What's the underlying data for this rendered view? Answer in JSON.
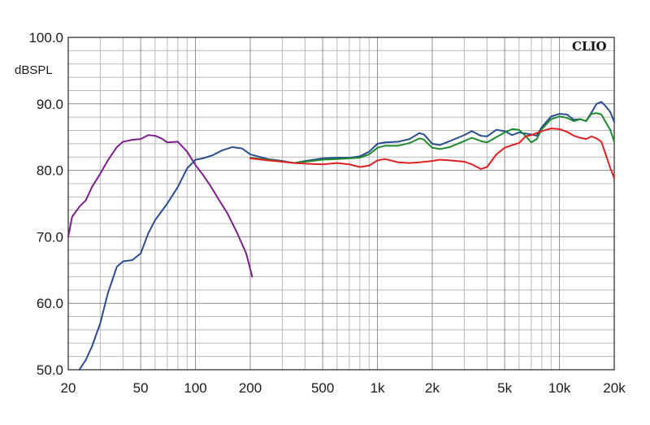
{
  "chart_data": {
    "type": "line",
    "brand": "CLIO",
    "ylabel": "dBSPL",
    "xlabel": "",
    "title": "",
    "x_scale": "log",
    "xlim": [
      20,
      20000
    ],
    "ylim": [
      50,
      100
    ],
    "grid": true,
    "y_ticks": [
      {
        "value": 50,
        "label": "50.0"
      },
      {
        "value": 60,
        "label": "60.0"
      },
      {
        "value": 70,
        "label": "70.0"
      },
      {
        "value": 80,
        "label": "80.0"
      },
      {
        "value": 90,
        "label": "90.0"
      },
      {
        "value": 100,
        "label": "100.0"
      }
    ],
    "x_ticks": [
      {
        "value": 20,
        "label": "20"
      },
      {
        "value": 50,
        "label": "50"
      },
      {
        "value": 100,
        "label": "100"
      },
      {
        "value": 200,
        "label": "200"
      },
      {
        "value": 500,
        "label": "500"
      },
      {
        "value": 1000,
        "label": "1k"
      },
      {
        "value": 2000,
        "label": "2k"
      },
      {
        "value": 5000,
        "label": "5k"
      },
      {
        "value": 10000,
        "label": "10k"
      },
      {
        "value": 20000,
        "label": "20k"
      }
    ],
    "series": [
      {
        "color": "#7b1f8a",
        "points": [
          [
            20,
            70
          ],
          [
            21,
            73
          ],
          [
            23,
            74.5
          ],
          [
            25,
            75.5
          ],
          [
            27,
            77.5
          ],
          [
            30,
            79.5
          ],
          [
            33,
            81.5
          ],
          [
            37,
            83.5
          ],
          [
            40,
            84.3
          ],
          [
            45,
            84.6
          ],
          [
            50,
            84.7
          ],
          [
            55,
            85.3
          ],
          [
            60,
            85.2
          ],
          [
            65,
            84.8
          ],
          [
            70,
            84.2
          ],
          [
            80,
            84.3
          ],
          [
            90,
            82.8
          ],
          [
            100,
            80.8
          ],
          [
            110,
            79.3
          ],
          [
            120,
            77.8
          ],
          [
            135,
            75.5
          ],
          [
            150,
            73.5
          ],
          [
            170,
            70.5
          ],
          [
            190,
            67.5
          ],
          [
            205,
            64
          ]
        ]
      },
      {
        "color": "#2a4d8f",
        "points": [
          [
            23,
            50
          ],
          [
            25,
            51.5
          ],
          [
            27,
            53.5
          ],
          [
            30,
            57
          ],
          [
            33,
            61.5
          ],
          [
            37,
            65.5
          ],
          [
            40,
            66.3
          ],
          [
            45,
            66.5
          ],
          [
            50,
            67.5
          ],
          [
            55,
            70.5
          ],
          [
            60,
            72.5
          ],
          [
            70,
            75
          ],
          [
            80,
            77.5
          ],
          [
            90,
            80.3
          ],
          [
            100,
            81.6
          ],
          [
            110,
            81.8
          ],
          [
            125,
            82.3
          ],
          [
            140,
            83
          ],
          [
            160,
            83.5
          ],
          [
            180,
            83.3
          ],
          [
            200,
            82.4
          ],
          [
            250,
            81.7
          ],
          [
            300,
            81.4
          ],
          [
            350,
            81.1
          ],
          [
            400,
            81.4
          ],
          [
            500,
            81.8
          ],
          [
            600,
            81.9
          ],
          [
            700,
            81.9
          ],
          [
            800,
            82.1
          ],
          [
            900,
            82.8
          ],
          [
            1000,
            84
          ],
          [
            1100,
            84.2
          ],
          [
            1300,
            84.3
          ],
          [
            1500,
            84.7
          ],
          [
            1700,
            85.6
          ],
          [
            1800,
            85.4
          ],
          [
            2000,
            84
          ],
          [
            2200,
            83.8
          ],
          [
            2500,
            84.4
          ],
          [
            3000,
            85.3
          ],
          [
            3300,
            85.9
          ],
          [
            3700,
            85.2
          ],
          [
            4000,
            85.1
          ],
          [
            4500,
            86.1
          ],
          [
            5000,
            85.9
          ],
          [
            5500,
            85.3
          ],
          [
            6000,
            85.7
          ],
          [
            7000,
            85.4
          ],
          [
            7500,
            85.2
          ],
          [
            8000,
            86.5
          ],
          [
            9000,
            88.1
          ],
          [
            10000,
            88.5
          ],
          [
            11000,
            88.4
          ],
          [
            12000,
            87.6
          ],
          [
            13000,
            87.7
          ],
          [
            14000,
            87.4
          ],
          [
            15000,
            88.7
          ],
          [
            16000,
            90
          ],
          [
            17000,
            90.3
          ],
          [
            18000,
            89.6
          ],
          [
            19000,
            88.8
          ],
          [
            20000,
            87.3
          ]
        ]
      },
      {
        "color": "#1e8a2e",
        "points": [
          [
            200,
            81.9
          ],
          [
            250,
            81.6
          ],
          [
            300,
            81.3
          ],
          [
            350,
            81.1
          ],
          [
            400,
            81.3
          ],
          [
            500,
            81.6
          ],
          [
            600,
            81.7
          ],
          [
            700,
            81.8
          ],
          [
            800,
            81.9
          ],
          [
            900,
            82.4
          ],
          [
            1000,
            83.4
          ],
          [
            1100,
            83.7
          ],
          [
            1300,
            83.7
          ],
          [
            1500,
            84.1
          ],
          [
            1700,
            84.8
          ],
          [
            1800,
            84.6
          ],
          [
            2000,
            83.4
          ],
          [
            2200,
            83.2
          ],
          [
            2500,
            83.5
          ],
          [
            3000,
            84.4
          ],
          [
            3300,
            84.9
          ],
          [
            3700,
            84.4
          ],
          [
            4000,
            84.2
          ],
          [
            4500,
            85
          ],
          [
            5000,
            85.7
          ],
          [
            5500,
            86.2
          ],
          [
            6000,
            86.1
          ],
          [
            6500,
            85.2
          ],
          [
            7000,
            84.2
          ],
          [
            7500,
            84.7
          ],
          [
            8000,
            86.2
          ],
          [
            9000,
            87.7
          ],
          [
            10000,
            88.1
          ],
          [
            11000,
            87.9
          ],
          [
            12000,
            87.4
          ],
          [
            13000,
            87.7
          ],
          [
            14000,
            87.4
          ],
          [
            15000,
            88.5
          ],
          [
            16000,
            88.6
          ],
          [
            17000,
            88.4
          ],
          [
            18000,
            87.2
          ],
          [
            19000,
            86.1
          ],
          [
            20000,
            84.3
          ]
        ]
      },
      {
        "color": "#e02020",
        "points": [
          [
            200,
            81.8
          ],
          [
            250,
            81.5
          ],
          [
            300,
            81.3
          ],
          [
            350,
            81.1
          ],
          [
            400,
            81
          ],
          [
            500,
            80.9
          ],
          [
            600,
            81.1
          ],
          [
            700,
            80.9
          ],
          [
            800,
            80.5
          ],
          [
            900,
            80.7
          ],
          [
            1000,
            81.5
          ],
          [
            1100,
            81.7
          ],
          [
            1300,
            81.2
          ],
          [
            1500,
            81.1
          ],
          [
            1700,
            81.2
          ],
          [
            2000,
            81.4
          ],
          [
            2200,
            81.6
          ],
          [
            2500,
            81.5
          ],
          [
            3000,
            81.3
          ],
          [
            3300,
            80.9
          ],
          [
            3700,
            80.2
          ],
          [
            4000,
            80.5
          ],
          [
            4500,
            82.4
          ],
          [
            5000,
            83.4
          ],
          [
            5500,
            83.8
          ],
          [
            6000,
            84.1
          ],
          [
            6500,
            85.1
          ],
          [
            7000,
            85.3
          ],
          [
            8000,
            85.9
          ],
          [
            9000,
            86.3
          ],
          [
            10000,
            86.2
          ],
          [
            11000,
            85.8
          ],
          [
            12000,
            85.2
          ],
          [
            13000,
            84.9
          ],
          [
            14000,
            84.7
          ],
          [
            15000,
            85.1
          ],
          [
            16000,
            84.8
          ],
          [
            17000,
            84.3
          ],
          [
            18000,
            82.3
          ],
          [
            19000,
            80.4
          ],
          [
            20000,
            78.8
          ]
        ]
      }
    ]
  }
}
